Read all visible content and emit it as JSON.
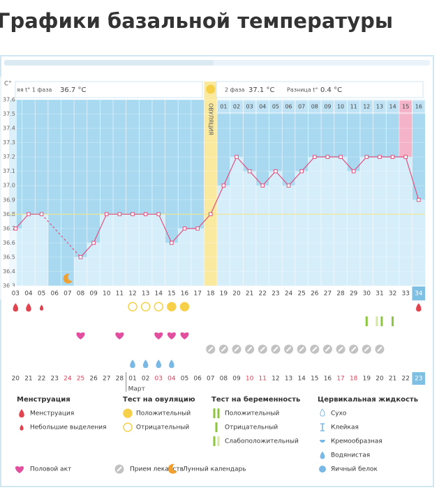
{
  "title": "Графики базальной температуры",
  "chart_data": {
    "type": "line",
    "y_unit": "C°",
    "categories": [
      "03",
      "04",
      "05",
      "06",
      "07",
      "08",
      "09",
      "10",
      "11",
      "12",
      "13",
      "14",
      "15",
      "16",
      "17",
      "18",
      "19",
      "20",
      "21",
      "22",
      "23",
      "24",
      "25",
      "26",
      "27",
      "28",
      "29",
      "30",
      "31",
      "32",
      "33",
      "34"
    ],
    "dates": [
      "20",
      "21",
      "22",
      "23",
      "24",
      "25",
      "26",
      "27",
      "28",
      "01",
      "02",
      "03",
      "04",
      "05",
      "06",
      "07",
      "08",
      "09",
      "10",
      "11",
      "12",
      "13",
      "14",
      "15",
      "16",
      "17",
      "18",
      "19",
      "20",
      "21",
      "22",
      "23"
    ],
    "month_label": "Март",
    "phase2_days": [
      "01",
      "02",
      "03",
      "04",
      "05",
      "06",
      "07",
      "08",
      "09",
      "10",
      "11",
      "12",
      "13",
      "14",
      "15",
      "16"
    ],
    "ovulation_label": "ОВУЛЯЦИЯ",
    "summary": {
      "phase1_label": "яя t° 1 фаза",
      "phase1_value": "36.7 °C",
      "phase2_label": "2 фаза",
      "phase2_value": "37.1 °C",
      "diff_label": "Разница t°",
      "diff_value": "0.4 °C"
    },
    "values": [
      36.7,
      36.8,
      36.8,
      null,
      null,
      36.5,
      36.6,
      36.8,
      36.8,
      36.8,
      36.8,
      36.8,
      36.6,
      36.7,
      36.7,
      36.8,
      37.0,
      37.2,
      37.1,
      37.0,
      37.1,
      37.0,
      37.1,
      37.2,
      37.2,
      37.2,
      37.1,
      37.2,
      37.2,
      37.2,
      37.2,
      36.9
    ],
    "color": "#e0507e",
    "coverline": 36.8,
    "ylim": [
      36.3,
      37.6
    ],
    "yticks": [
      37.6,
      37.5,
      37.4,
      37.3,
      37.2,
      37.1,
      {
        "value": 37,
        "label": "37.0"
      },
      36.9,
      36.8,
      36.7,
      36.6,
      36.5,
      36.4,
      36.3
    ],
    "grid": true
  },
  "legend": {
    "groups": [
      {
        "title": "Менструация",
        "items": [
          "Менструация",
          "Небольшие выделения"
        ]
      },
      {
        "title": "Тест на овуляцию",
        "items": [
          "Положительный",
          "Отрицательный"
        ]
      },
      {
        "title": "Тест на беременность",
        "items": [
          "Положительный",
          "Отрицательный",
          "Слабоположительный"
        ]
      },
      {
        "title": "Цервикальная жидкость",
        "items": [
          "Сухо",
          "Клейкая",
          "Кремообразная",
          "Водянистая",
          "Яичный белок"
        ]
      }
    ],
    "extra": [
      "Половой акт",
      "Прием лекарств",
      "Лунный календарь"
    ]
  }
}
